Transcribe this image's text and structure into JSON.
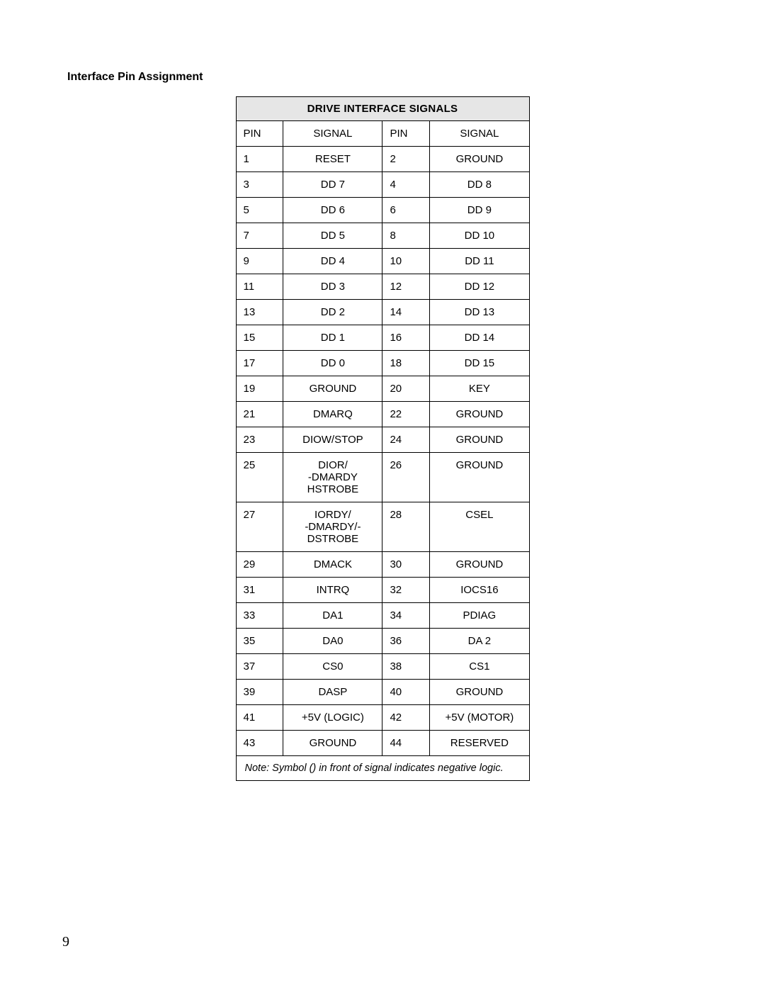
{
  "section_title": "Interface Pin Assignment",
  "table": {
    "title": "DRIVE INTERFACE SIGNALS",
    "columns": [
      "PIN",
      "SIGNAL",
      "PIN",
      "SIGNAL"
    ],
    "rows": [
      [
        "1",
        "RESET",
        "2",
        "GROUND"
      ],
      [
        "3",
        "DD 7",
        "4",
        "DD 8"
      ],
      [
        "5",
        "DD 6",
        "6",
        "DD 9"
      ],
      [
        "7",
        "DD 5",
        "8",
        "DD 10"
      ],
      [
        "9",
        "DD 4",
        "10",
        "DD 11"
      ],
      [
        "11",
        "DD 3",
        "12",
        "DD 12"
      ],
      [
        "13",
        "DD 2",
        "14",
        "DD 13"
      ],
      [
        "15",
        "DD 1",
        "16",
        "DD 14"
      ],
      [
        "17",
        "DD 0",
        "18",
        "DD 15"
      ],
      [
        "19",
        "GROUND",
        "20",
        "KEY"
      ],
      [
        "21",
        "DMARQ",
        "22",
        "GROUND"
      ],
      [
        "23",
        "DIOW/STOP",
        "24",
        "GROUND"
      ],
      [
        "25",
        "DIOR/\n-DMARDY\nHSTROBE",
        "26",
        "GROUND"
      ],
      [
        "27",
        "IORDY/\n-DMARDY/-\nDSTROBE",
        "28",
        "CSEL"
      ],
      [
        "29",
        "DMACK",
        "30",
        "GROUND"
      ],
      [
        "31",
        "INTRQ",
        "32",
        "IOCS16"
      ],
      [
        "33",
        "DA1",
        "34",
        "PDIAG"
      ],
      [
        "35",
        "DA0",
        "36",
        "DA 2"
      ],
      [
        "37",
        "CS0",
        "38",
        "CS1"
      ],
      [
        "39",
        "DASP",
        "40",
        "GROUND"
      ],
      [
        "41",
        "+5V (LOGIC)",
        "42",
        "+5V (MOTOR)"
      ],
      [
        "43",
        "GROUND",
        "44",
        "RESERVED"
      ]
    ],
    "note": "Note: Symbol () in front of signal indicates negative logic."
  },
  "page_number": "9",
  "colors": {
    "header_bg": "#e6e6e6",
    "border": "#000000",
    "background": "#ffffff",
    "text": "#000000"
  }
}
